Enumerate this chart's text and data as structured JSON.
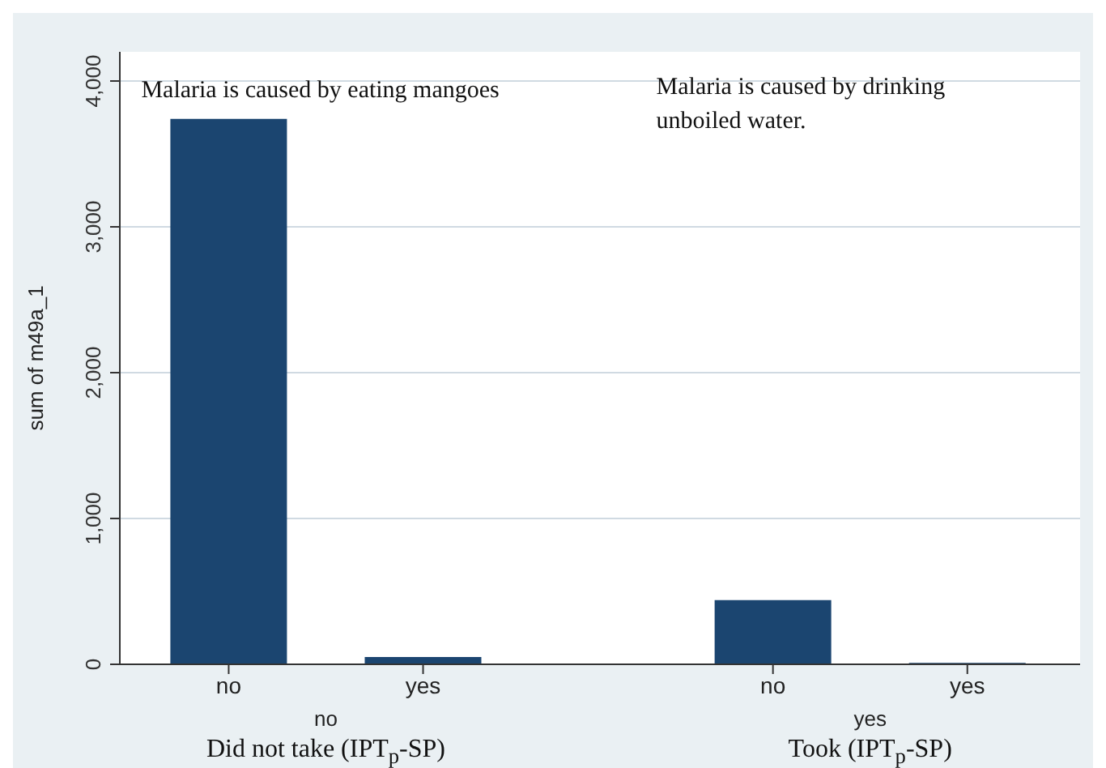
{
  "chart_data": {
    "type": "bar",
    "ylabel": "sum of m49a_1",
    "categories": [
      "no",
      "yes",
      "no",
      "yes"
    ],
    "values": [
      3740,
      50,
      440,
      10
    ],
    "color": "#1b4570",
    "ylim": [
      0,
      4200
    ],
    "yticks": [
      {
        "value": 0,
        "label": "0"
      },
      {
        "value": 1000,
        "label": "1,000"
      },
      {
        "value": 2000,
        "label": "2,000"
      },
      {
        "value": 3000,
        "label": "3,000"
      },
      {
        "value": 4000,
        "label": "4,000"
      }
    ],
    "grid": "y",
    "annotations": [
      "Malaria is caused by eating mangoes",
      "Malaria is caused by drinking unboiled water.",
      "no",
      "yes",
      "Did not take (IPT$_{p}$-SP)",
      "Took (IPT$_{p}$-SP)"
    ]
  }
}
